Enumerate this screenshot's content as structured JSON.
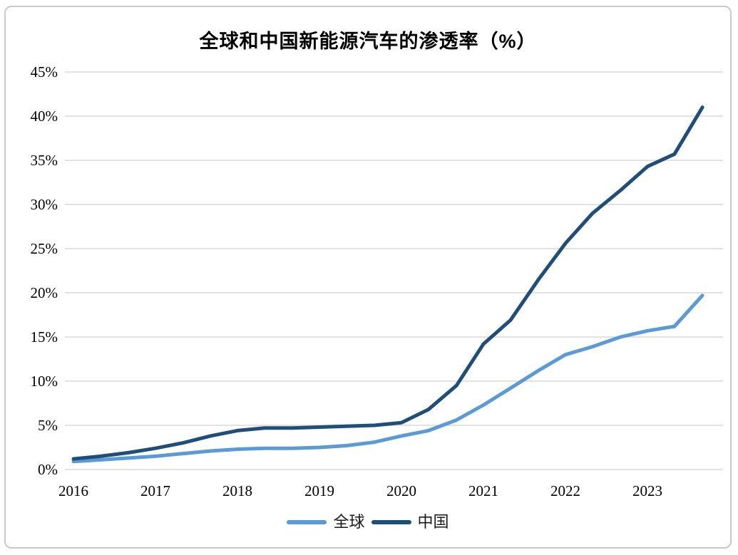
{
  "chart": {
    "title": "全球和中国新能源汽车的渗透率（%）"
  },
  "chart_data": {
    "type": "line",
    "title": "全球和中国新能源汽车的渗透率（%）",
    "xlabel": "",
    "ylabel": "",
    "ylim": [
      0,
      45
    ],
    "y_tick_step": 5,
    "xlim": [
      2015.9,
      2023.95
    ],
    "grid": "horizontal",
    "grid_color": "#D9D9D9",
    "axis_label_color": "#000000",
    "legend_position": "bottom",
    "x_tick_labels": [
      "2016",
      "2017",
      "2018",
      "2019",
      "2020",
      "2021",
      "2022",
      "2023"
    ],
    "y_tick_labels": [
      "0%",
      "5%",
      "10%",
      "15%",
      "20%",
      "25%",
      "30%",
      "35%",
      "40%",
      "45%"
    ],
    "x": [
      2016.0,
      2016.33,
      2016.67,
      2017.0,
      2017.33,
      2017.67,
      2018.0,
      2018.33,
      2018.67,
      2019.0,
      2019.33,
      2019.67,
      2020.0,
      2020.33,
      2020.67,
      2021.0,
      2021.33,
      2021.67,
      2022.0,
      2022.33,
      2022.67,
      2023.0,
      2023.33,
      2023.67
    ],
    "series": [
      {
        "name": "全球",
        "color": "#5B9BD5",
        "values": [
          0.9,
          1.1,
          1.3,
          1.5,
          1.8,
          2.1,
          2.3,
          2.4,
          2.4,
          2.5,
          2.7,
          3.1,
          3.8,
          4.4,
          5.6,
          7.3,
          9.2,
          11.2,
          13.0,
          13.9,
          15.0,
          15.7,
          16.2,
          19.7
        ]
      },
      {
        "name": "中国",
        "color": "#1F4E79",
        "values": [
          1.2,
          1.5,
          1.9,
          2.4,
          3.0,
          3.8,
          4.4,
          4.7,
          4.7,
          4.8,
          4.9,
          5.0,
          5.3,
          6.8,
          9.5,
          14.2,
          16.9,
          21.5,
          25.6,
          29.0,
          31.6,
          34.3,
          35.7,
          41.0
        ]
      }
    ]
  }
}
